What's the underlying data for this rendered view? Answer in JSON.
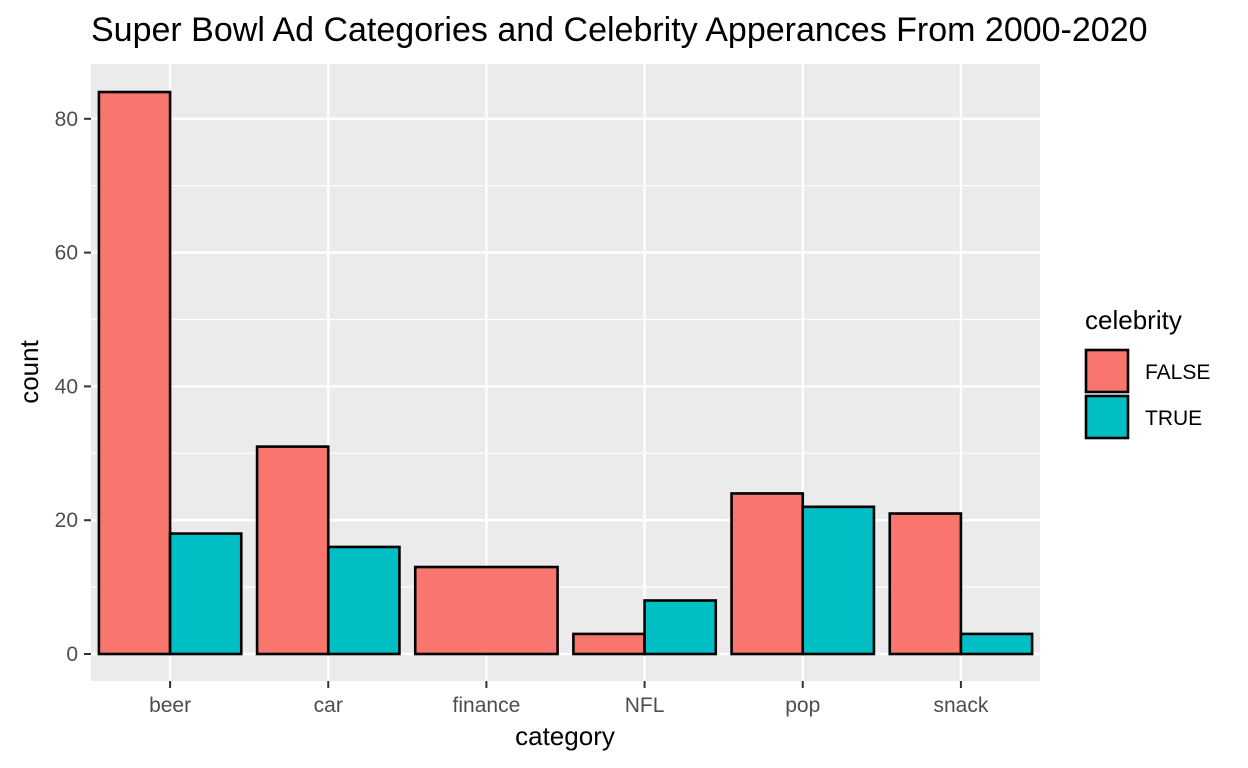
{
  "chart_data": {
    "type": "bar",
    "title": "Super Bowl Ad Categories and Celebrity Apperances From 2000-2020",
    "xlabel": "category",
    "ylabel": "count",
    "categories": [
      "beer",
      "car",
      "finance",
      "NFL",
      "pop",
      "snack"
    ],
    "series": [
      {
        "name": "FALSE",
        "color": "#F8766D",
        "values": [
          84,
          31,
          13,
          3,
          24,
          21
        ]
      },
      {
        "name": "TRUE",
        "color": "#00BFC4",
        "values": [
          18,
          16,
          null,
          8,
          22,
          3
        ]
      }
    ],
    "ylim": [
      0,
      88
    ],
    "yticks": [
      0,
      20,
      40,
      60,
      80
    ],
    "grid": true,
    "legend": {
      "title": "celebrity",
      "position": "right"
    },
    "colors": {
      "panel": "#EBEBEB",
      "grid": "#FFFFFF",
      "tick_text": "#4D4D4D",
      "bar_outline": "#000000"
    }
  }
}
